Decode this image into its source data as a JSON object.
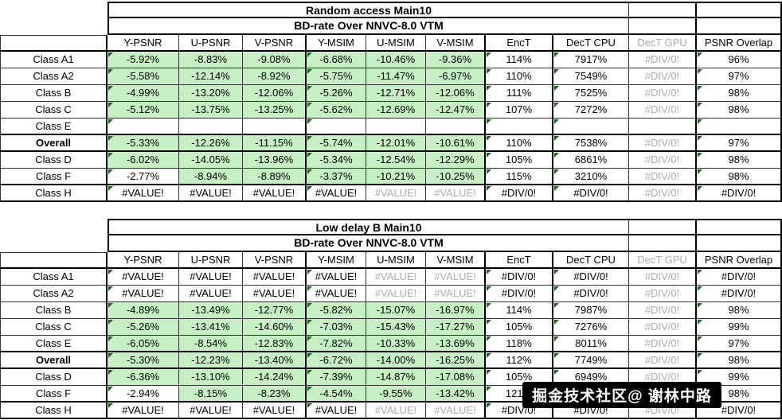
{
  "colors": {
    "green_fill": "#c6f0c3",
    "gray_text": "#acacac",
    "triangle": "#1e651e",
    "border_thin": "#333333",
    "border_thick": "#000000",
    "watermark_bg": "#000000",
    "watermark_text_color": "#ffffff"
  },
  "columns": [
    "Y-PSNR",
    "U-PSNR",
    "V-PSNR",
    "Y-MSIM",
    "U-MSIM",
    "V-MSIM",
    "EncT",
    "DecT CPU",
    "DecT GPU",
    "PSNR Overlap"
  ],
  "gray_header_columns": [
    8
  ],
  "tables": [
    {
      "title": "Random access Main10",
      "subtitle": "BD-rate Over NNVC-8.0 VTM",
      "rows": [
        {
          "label": "Class A1",
          "bold": false,
          "v": [
            "-5.92%",
            "-8.83%",
            "-9.08%",
            "-6.68%",
            "-10.46%",
            "-9.36%",
            "114%",
            "7917%",
            "#DIV/0!",
            "96%"
          ],
          "green": [
            0,
            1,
            2,
            3,
            4,
            5
          ],
          "gray": [
            8
          ]
        },
        {
          "label": "Class A2",
          "bold": false,
          "v": [
            "-5.58%",
            "-12.14%",
            "-8.92%",
            "-5.75%",
            "-11.47%",
            "-6.97%",
            "110%",
            "7549%",
            "#DIV/0!",
            "97%"
          ],
          "green": [
            0,
            1,
            2,
            3,
            4,
            5
          ],
          "gray": [
            8
          ]
        },
        {
          "label": "Class B",
          "bold": false,
          "v": [
            "-4.99%",
            "-13.20%",
            "-12.06%",
            "-5.26%",
            "-12.71%",
            "-12.06%",
            "111%",
            "7525%",
            "#DIV/0!",
            "98%"
          ],
          "green": [
            0,
            1,
            2,
            3,
            4,
            5
          ],
          "gray": [
            8
          ]
        },
        {
          "label": "Class C",
          "bold": false,
          "v": [
            "-5.12%",
            "-13.75%",
            "-13.25%",
            "-5.62%",
            "-12.69%",
            "-12.47%",
            "107%",
            "7272%",
            "#DIV/0!",
            "98%"
          ],
          "green": [
            0,
            1,
            2,
            3,
            4,
            5
          ],
          "gray": [
            8
          ]
        },
        {
          "label": "Class E",
          "bold": false,
          "v": [
            "",
            "",
            "",
            "",
            "",
            "",
            "",
            "",
            "",
            ""
          ],
          "green": [],
          "gray": []
        },
        {
          "label": "Overall",
          "bold": true,
          "v": [
            "-5.33%",
            "-12.26%",
            "-11.15%",
            "-5.74%",
            "-12.01%",
            "-10.61%",
            "110%",
            "7538%",
            "#DIV/0!",
            "97%"
          ],
          "green": [
            0,
            1,
            2,
            3,
            4,
            5
          ],
          "gray": [
            8
          ]
        },
        {
          "label": "Class D",
          "bold": false,
          "v": [
            "-6.02%",
            "-14.05%",
            "-13.96%",
            "-5.34%",
            "-12.54%",
            "-12.29%",
            "105%",
            "6861%",
            "#DIV/0!",
            "98%"
          ],
          "green": [
            0,
            1,
            2,
            3,
            4,
            5
          ],
          "gray": [
            8
          ]
        },
        {
          "label": "Class F",
          "bold": false,
          "v": [
            "-2.77%",
            "-8.94%",
            "-8.89%",
            "-3.37%",
            "-10.21%",
            "-10.25%",
            "115%",
            "3210%",
            "#DIV/0!",
            "98%"
          ],
          "green": [
            1,
            2,
            3,
            4,
            5
          ],
          "gray": [
            8
          ]
        },
        {
          "label": "Class H",
          "bold": false,
          "v": [
            "#VALUE!",
            "#VALUE!",
            "#VALUE!",
            "#VALUE!",
            "#VALUE!",
            "#VALUE!",
            "#DIV/0!",
            "#DIV/0!",
            "#DIV/0!",
            "#DIV/0!"
          ],
          "green": [],
          "gray": [
            4,
            5,
            8
          ]
        }
      ]
    },
    {
      "title": "Low delay B Main10",
      "subtitle": "BD-rate Over NNVC-8.0 VTM",
      "rows": [
        {
          "label": "Class A1",
          "bold": false,
          "v": [
            "#VALUE!",
            "#VALUE!",
            "#VALUE!",
            "#VALUE!",
            "#VALUE!",
            "#VALUE!",
            "#DIV/0!",
            "#DIV/0!",
            "#DIV/0!",
            "#DIV/0!"
          ],
          "green": [],
          "gray": [
            4,
            5,
            8
          ]
        },
        {
          "label": "Class A2",
          "bold": false,
          "v": [
            "#VALUE!",
            "#VALUE!",
            "#VALUE!",
            "#VALUE!",
            "#VALUE!",
            "#VALUE!",
            "#DIV/0!",
            "#DIV/0!",
            "#DIV/0!",
            "#DIV/0!"
          ],
          "green": [],
          "gray": [
            4,
            5,
            8
          ]
        },
        {
          "label": "Class B",
          "bold": false,
          "v": [
            "-4.89%",
            "-13.49%",
            "-12.77%",
            "-5.82%",
            "-15.07%",
            "-16.97%",
            "114%",
            "7987%",
            "#DIV/0!",
            "98%"
          ],
          "green": [
            0,
            1,
            2,
            3,
            4,
            5
          ],
          "gray": [
            8
          ]
        },
        {
          "label": "Class C",
          "bold": false,
          "v": [
            "-5.26%",
            "-13.41%",
            "-14.60%",
            "-7.03%",
            "-15.43%",
            "-17.27%",
            "105%",
            "7276%",
            "#DIV/0!",
            "99%"
          ],
          "green": [
            0,
            1,
            2,
            3,
            4,
            5
          ],
          "gray": [
            8
          ]
        },
        {
          "label": "Class E",
          "bold": false,
          "v": [
            "-6.05%",
            "-8.54%",
            "-12.83%",
            "-7.82%",
            "-10.33%",
            "-13.69%",
            "118%",
            "8011%",
            "#DIV/0!",
            "97%"
          ],
          "green": [
            0,
            1,
            2,
            3,
            4,
            5
          ],
          "gray": [
            8
          ]
        },
        {
          "label": "Overall",
          "bold": true,
          "v": [
            "-5.30%",
            "-12.23%",
            "-13.40%",
            "-6.72%",
            "-14.00%",
            "-16.25%",
            "112%",
            "7749%",
            "#DIV/0!",
            "98%"
          ],
          "green": [
            0,
            1,
            2,
            3,
            4,
            5
          ],
          "gray": [
            8
          ]
        },
        {
          "label": "Class D",
          "bold": false,
          "v": [
            "-6.36%",
            "-13.10%",
            "-14.24%",
            "-7.39%",
            "-14.87%",
            "-17.08%",
            "105%",
            "6949%",
            "#DIV/0!",
            "99%"
          ],
          "green": [
            0,
            1,
            2,
            3,
            4,
            5
          ],
          "gray": [
            8
          ]
        },
        {
          "label": "Class F",
          "bold": false,
          "v": [
            "-2.94%",
            "-8.15%",
            "-8.23%",
            "-4.54%",
            "-9.55%",
            "-13.42%",
            "121%",
            "",
            "",
            "98%"
          ],
          "green": [
            1,
            2,
            3,
            4,
            5
          ],
          "gray": []
        },
        {
          "label": "Class H",
          "bold": false,
          "v": [
            "#VALUE!",
            "#VALUE!",
            "#VALUE!",
            "#VALUE!",
            "#VALUE!",
            "#VALUE!",
            "#DIV/0!",
            "#DIV/0!",
            "#DIV/0!",
            "#DIV/0!"
          ],
          "green": [],
          "gray": [
            4,
            5,
            8
          ]
        }
      ]
    }
  ],
  "watermark": {
    "text": "掘金技术社区@ 谢林中路"
  },
  "layout_hints": {
    "triangle_columns": [
      0,
      3,
      6,
      7,
      9
    ],
    "thick_right_data_columns": [
      2,
      5,
      6,
      8,
      9
    ],
    "thick_bottom_body_rows": [
      4,
      5,
      7,
      8
    ]
  }
}
